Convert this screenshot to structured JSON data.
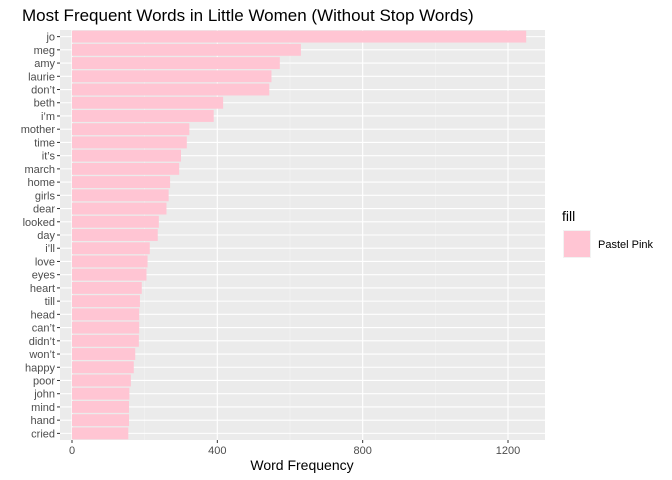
{
  "chart_data": {
    "type": "bar",
    "orientation": "horizontal",
    "title": "Most Frequent Words in Little Women (Without Stop Words)",
    "xlabel": "Word Frequency",
    "ylabel": "",
    "xlim": [
      0,
      1300
    ],
    "x_ticks": [
      0,
      400,
      800,
      1200
    ],
    "categories": [
      "jo",
      "meg",
      "amy",
      "laurie",
      "don’t",
      "beth",
      "i’m",
      "mother",
      "time",
      "it’s",
      "march",
      "home",
      "girls",
      "dear",
      "looked",
      "day",
      "i’ll",
      "love",
      "eyes",
      "heart",
      "till",
      "head",
      "can’t",
      "didn’t",
      "won’t",
      "happy",
      "poor",
      "john",
      "mind",
      "hand",
      "cried"
    ],
    "values": [
      1250,
      630,
      572,
      549,
      543,
      416,
      390,
      323,
      316,
      300,
      295,
      270,
      266,
      260,
      239,
      236,
      214,
      208,
      205,
      192,
      187,
      185,
      185,
      184,
      174,
      170,
      162,
      158,
      157,
      157,
      155
    ],
    "bar_color": "#FFC5D3",
    "grid": true,
    "legend": {
      "title": "fill",
      "position": "right",
      "entries": [
        {
          "label": "Pastel Pink",
          "color": "#FFC5D3"
        }
      ]
    }
  }
}
